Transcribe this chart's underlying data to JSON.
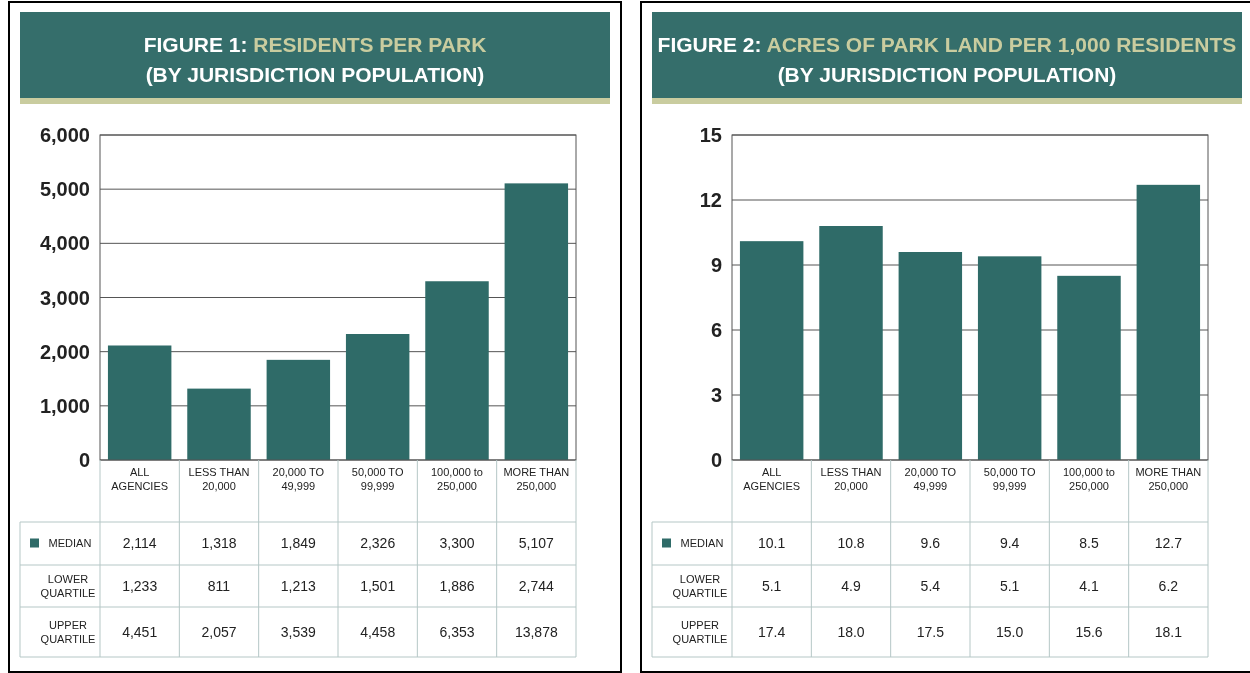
{
  "chart_data": [
    {
      "type": "bar",
      "title": "FIGURE 1: RESIDENTS PER PARK (BY JURISDICTION POPULATION)",
      "categories": [
        "ALL AGENCIES",
        "LESS THAN 20,000",
        "20,000 TO 49,999",
        "50,000 TO 99,999",
        "100,000 to 250,000",
        "MORE THAN 250,000"
      ],
      "series": [
        {
          "name": "MEDIAN",
          "color": "#2f6b68",
          "values": [
            2114,
            1318,
            1849,
            2326,
            3300,
            5107
          ],
          "value_labels": [
            "2,114",
            "1,318",
            "1,849",
            "2,326",
            "3,300",
            "5,107"
          ]
        }
      ],
      "annotations": [
        "LOWER QUARTILE",
        "1,233",
        "811",
        "1,213",
        "1,501",
        "1,886",
        "2,744",
        "UPPER QUARTILE",
        "4,451",
        "2,057",
        "3,539",
        "4,458",
        "6,353",
        "13,878"
      ],
      "ylim": [
        0,
        6000
      ],
      "yticks": [
        0,
        {
          "value": 1000,
          "label": "1,000"
        },
        {
          "value": 2000,
          "label": "2,000"
        },
        {
          "value": 3000,
          "label": "3,000"
        },
        {
          "value": 4000,
          "label": "4,000"
        },
        {
          "value": 5000,
          "label": "5,000"
        },
        {
          "value": 6000,
          "label": "6,000"
        }
      ],
      "grid": "y"
    },
    {
      "type": "bar",
      "title": "FIGURE 2: ACRES OF PARK LAND PER 1,000 RESIDENTS (BY JURISDICTION POPULATION)",
      "categories": [
        "ALL AGENCIES",
        "LESS THAN 20,000",
        "20,000 TO 49,999",
        "50,000 TO 99,999",
        "100,000 to 250,000",
        "MORE THAN 250,000"
      ],
      "series": [
        {
          "name": "MEDIAN",
          "color": "#2f6b68",
          "values": [
            10.1,
            10.8,
            9.6,
            9.4,
            8.5,
            12.7
          ],
          "value_labels": [
            "10.1",
            "10.8",
            "9.6",
            "9.4",
            "8.5",
            "12.7"
          ]
        }
      ],
      "annotations": [
        "LOWER QUARTILE",
        "5.1",
        "4.9",
        "5.4",
        "5.1",
        "4.1",
        "6.2",
        "UPPER QUARTILE",
        "17.4",
        "18.0",
        "17.5",
        "15.0",
        "15.6",
        "18.1"
      ],
      "ylim": [
        0,
        15
      ],
      "yticks": [
        0,
        3,
        6,
        9,
        12,
        15
      ],
      "grid": "y"
    }
  ]
}
